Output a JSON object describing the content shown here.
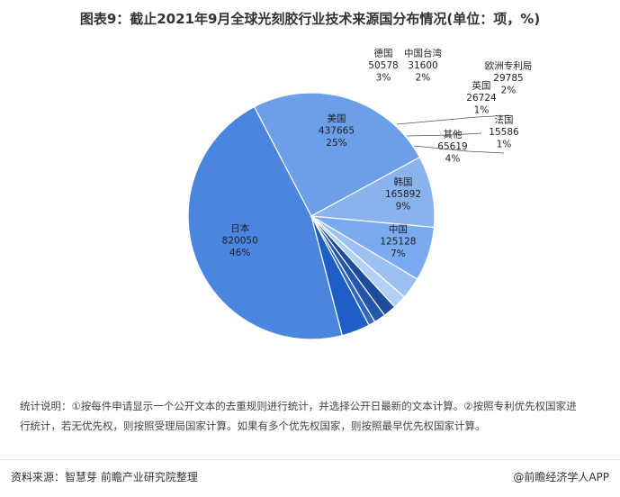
{
  "title": "图表9：截止2021年9月全球光刻胶行业技术来源国分布情况(单位：项，%)",
  "chart_data": {
    "type": "pie",
    "slices": [
      {
        "name": "日本",
        "value": 820050,
        "pct": "46%",
        "color": "#4a86e0"
      },
      {
        "name": "美国",
        "value": 437665,
        "pct": "25%",
        "color": "#6b9fe8"
      },
      {
        "name": "韩国",
        "value": 165892,
        "pct": "9%",
        "color": "#8ab3ee"
      },
      {
        "name": "中国",
        "value": 125128,
        "pct": "7%",
        "color": "#7aaaf0"
      },
      {
        "name": "德国",
        "value": 50578,
        "pct": "3%",
        "color": "#9cc0f2"
      },
      {
        "name": "中国台湾",
        "value": 31600,
        "pct": "2%",
        "color": "#b3d0f6"
      },
      {
        "name": "欧洲专利局",
        "value": 29785,
        "pct": "2%",
        "color": "#1e4b9a"
      },
      {
        "name": "英国",
        "value": 26724,
        "pct": "1%",
        "color": "#2456ae"
      },
      {
        "name": "法国",
        "value": 15586,
        "pct": "1%",
        "color": "#2f67c5"
      },
      {
        "name": "其他",
        "value": 65619,
        "pct": "4%",
        "color": "#1d5fc4"
      }
    ]
  },
  "note": {
    "line1": "统计说明：①按每件申请显示一个公开文本的去重规则进行统计，并选择公开日最新的文本计算。②按照专利优先权国家进",
    "line2": "行统计，若无优先权，则按照受理局国家计算。如果有多个优先权国家，则按照最早优先权国家计算。"
  },
  "footer": {
    "source": "资料来源：智慧芽 前瞻产业研究院整理",
    "brand": "@前瞻经济学人APP"
  }
}
